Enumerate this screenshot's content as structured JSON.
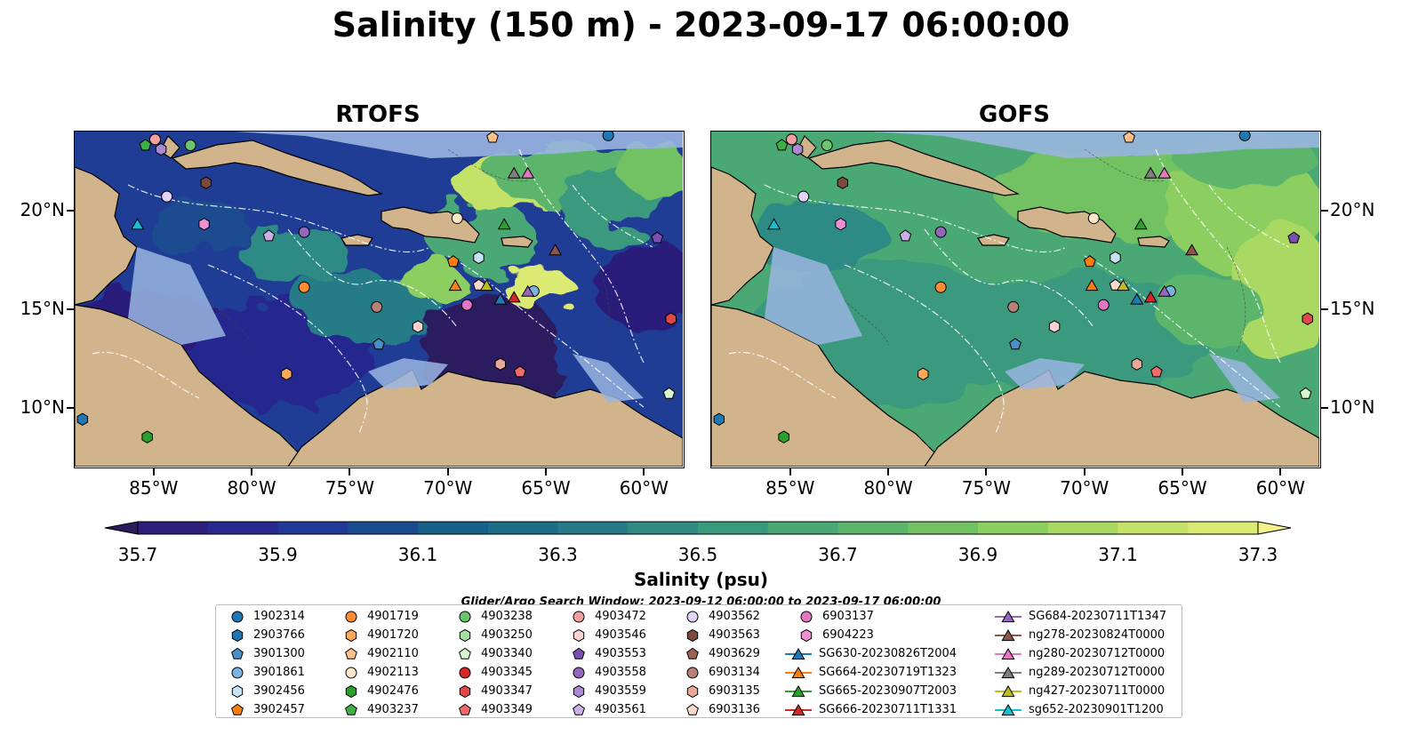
{
  "title": "Salinity (150 m) - 2023-09-17 06:00:00",
  "panels": [
    {
      "title": "RTOFS",
      "field": "rtofs"
    },
    {
      "title": "GOFS",
      "field": "gofs"
    }
  ],
  "axes": {
    "lon_ticks": [
      "85°W",
      "80°W",
      "75°W",
      "70°W",
      "65°W",
      "60°W"
    ],
    "lat_ticks": [
      "20°N",
      "15°N",
      "10°N"
    ],
    "lon_range": [
      -89,
      -58
    ],
    "lat_range": [
      7,
      24
    ]
  },
  "colorbar": {
    "label": "Salinity (psu)",
    "min": 35.6,
    "max": 37.4,
    "step": 0.1,
    "extend": "both",
    "ticks": [
      "35.7",
      "35.9",
      "36.1",
      "36.3",
      "36.5",
      "36.7",
      "36.9",
      "37.1",
      "37.3"
    ],
    "colormap": "haline",
    "colors": [
      "#2a1a5e",
      "#2c1e7a",
      "#28288f",
      "#223a96",
      "#1b4b8f",
      "#176089",
      "#1c6e86",
      "#267b86",
      "#2f8a84",
      "#3a9a7e",
      "#4aa874",
      "#5cb56a",
      "#72c264",
      "#8dce60",
      "#a9d962",
      "#c4e267",
      "#dbea73",
      "#f3f28a"
    ]
  },
  "search_window": "Glider/Argo Search Window: 2023-09-12 06:00:00 to 2023-09-17 06:00:00",
  "legend": [
    {
      "label": "1902314",
      "marker": "circle",
      "color": "#1f77b4"
    },
    {
      "label": "2903766",
      "marker": "hexagon",
      "color": "#1f77b4"
    },
    {
      "label": "3901300",
      "marker": "pentagon",
      "color": "#4a90c8"
    },
    {
      "label": "3901861",
      "marker": "circle",
      "color": "#7ab3e0"
    },
    {
      "label": "3902456",
      "marker": "hexagon",
      "color": "#c6e2f5"
    },
    {
      "label": "3902457",
      "marker": "pentagon",
      "color": "#ff7f0e"
    },
    {
      "label": "4901719",
      "marker": "circle",
      "color": "#ff8c33"
    },
    {
      "label": "4901720",
      "marker": "hexagon",
      "color": "#ffa958"
    },
    {
      "label": "4902110",
      "marker": "pentagon",
      "color": "#ffc08a"
    },
    {
      "label": "4902113",
      "marker": "circle",
      "color": "#ffe6c8"
    },
    {
      "label": "4902476",
      "marker": "hexagon",
      "color": "#2ca02c"
    },
    {
      "label": "4903237",
      "marker": "pentagon",
      "color": "#3cb043"
    },
    {
      "label": "4903238",
      "marker": "circle",
      "color": "#6cc56c"
    },
    {
      "label": "4903250",
      "marker": "hexagon",
      "color": "#a6e0a0"
    },
    {
      "label": "4903340",
      "marker": "pentagon",
      "color": "#d8f5d0"
    },
    {
      "label": "4903345",
      "marker": "circle",
      "color": "#d62728"
    },
    {
      "label": "4903347",
      "marker": "hexagon",
      "color": "#e04848"
    },
    {
      "label": "4903349",
      "marker": "pentagon",
      "color": "#f06a6a"
    },
    {
      "label": "4903472",
      "marker": "circle",
      "color": "#f5a0a0"
    },
    {
      "label": "4903546",
      "marker": "hexagon",
      "color": "#fcd2d2"
    },
    {
      "label": "4903553",
      "marker": "pentagon",
      "color": "#7b4fb0"
    },
    {
      "label": "4903558",
      "marker": "circle",
      "color": "#9467bd"
    },
    {
      "label": "4903559",
      "marker": "hexagon",
      "color": "#ac88d0"
    },
    {
      "label": "4903561",
      "marker": "pentagon",
      "color": "#c9b0e6"
    },
    {
      "label": "4903562",
      "marker": "circle",
      "color": "#e2d2f5"
    },
    {
      "label": "4903563",
      "marker": "hexagon",
      "color": "#7a4a3e"
    },
    {
      "label": "4903629",
      "marker": "pentagon",
      "color": "#9b6254"
    },
    {
      "label": "6903134",
      "marker": "circle",
      "color": "#b88276"
    },
    {
      "label": "6903135",
      "marker": "hexagon",
      "color": "#e8a898"
    },
    {
      "label": "6903136",
      "marker": "pentagon",
      "color": "#fbd8cc"
    },
    {
      "label": "6903137",
      "marker": "circle",
      "color": "#e377c2"
    },
    {
      "label": "6904223",
      "marker": "hexagon",
      "color": "#ee90d2"
    },
    {
      "label": "SG630-20230826T2004",
      "marker": "triangle-line",
      "color": "#1f77b4"
    },
    {
      "label": "SG664-20230719T1323",
      "marker": "triangle-line",
      "color": "#ff7f0e"
    },
    {
      "label": "SG665-20230907T2003",
      "marker": "triangle-line",
      "color": "#2ca02c"
    },
    {
      "label": "SG666-20230711T1331",
      "marker": "triangle-line",
      "color": "#d62728"
    },
    {
      "label": "SG684-20230711T1347",
      "marker": "triangle-line",
      "color": "#9467bd"
    },
    {
      "label": "ng278-20230824T0000",
      "marker": "triangle-line",
      "color": "#8c564b"
    },
    {
      "label": "ng280-20230712T0000",
      "marker": "triangle-line",
      "color": "#e377c2"
    },
    {
      "label": "ng289-20230712T0000",
      "marker": "triangle-line",
      "color": "#7f7f7f"
    },
    {
      "label": "ng427-20230711T0000",
      "marker": "triangle-line",
      "color": "#bcbd22"
    },
    {
      "label": "sg652-20230901T1200",
      "marker": "triangle-line",
      "color": "#17becf"
    }
  ],
  "observations": [
    {
      "lon": -61.8,
      "lat": 23.8,
      "ref": 0
    },
    {
      "lon": -88.6,
      "lat": 9.4,
      "ref": 1
    },
    {
      "lon": -73.5,
      "lat": 13.2,
      "ref": 2
    },
    {
      "lon": -65.6,
      "lat": 15.9,
      "ref": 3
    },
    {
      "lon": -68.4,
      "lat": 17.6,
      "ref": 4
    },
    {
      "lon": -69.7,
      "lat": 17.4,
      "ref": 5
    },
    {
      "lon": -77.3,
      "lat": 16.1,
      "ref": 6
    },
    {
      "lon": -78.2,
      "lat": 11.7,
      "ref": 7
    },
    {
      "lon": -67.7,
      "lat": 23.7,
      "ref": 8
    },
    {
      "lon": -69.5,
      "lat": 19.6,
      "ref": 9
    },
    {
      "lon": -85.3,
      "lat": 8.5,
      "ref": 10
    },
    {
      "lon": -85.4,
      "lat": 23.3,
      "ref": 11
    },
    {
      "lon": -83.1,
      "lat": 23.3,
      "ref": 12
    },
    {
      "lon": -58.7,
      "lat": 10.7,
      "ref": 14
    },
    {
      "lon": -58.6,
      "lat": 14.5,
      "ref": 16
    },
    {
      "lon": -66.3,
      "lat": 11.8,
      "ref": 17
    },
    {
      "lon": -84.9,
      "lat": 23.6,
      "ref": 18
    },
    {
      "lon": -71.5,
      "lat": 14.1,
      "ref": 19
    },
    {
      "lon": -59.3,
      "lat": 18.6,
      "ref": 20
    },
    {
      "lon": -77.3,
      "lat": 18.9,
      "ref": 21
    },
    {
      "lon": -84.6,
      "lat": 23.1,
      "ref": 22
    },
    {
      "lon": -79.1,
      "lat": 18.7,
      "ref": 23
    },
    {
      "lon": -84.3,
      "lat": 20.7,
      "ref": 24
    },
    {
      "lon": -82.3,
      "lat": 21.4,
      "ref": 25
    },
    {
      "lon": -73.6,
      "lat": 15.1,
      "ref": 27
    },
    {
      "lon": -67.3,
      "lat": 12.2,
      "ref": 28
    },
    {
      "lon": -68.4,
      "lat": 16.2,
      "ref": 29
    },
    {
      "lon": -69.0,
      "lat": 15.2,
      "ref": 30
    },
    {
      "lon": -82.4,
      "lat": 19.3,
      "ref": 31
    },
    {
      "lon": -67.3,
      "lat": 15.5,
      "ref": 32
    },
    {
      "lon": -69.6,
      "lat": 16.2,
      "ref": 33
    },
    {
      "lon": -67.1,
      "lat": 19.3,
      "ref": 34
    },
    {
      "lon": -66.6,
      "lat": 15.6,
      "ref": 35
    },
    {
      "lon": -65.9,
      "lat": 15.9,
      "ref": 36
    },
    {
      "lon": -64.5,
      "lat": 18.0,
      "ref": 37
    },
    {
      "lon": -65.9,
      "lat": 21.9,
      "ref": 38
    },
    {
      "lon": -66.6,
      "lat": 21.9,
      "ref": 39
    },
    {
      "lon": -68.0,
      "lat": 16.2,
      "ref": 40
    },
    {
      "lon": -85.8,
      "lat": 19.3,
      "ref": 41
    }
  ]
}
